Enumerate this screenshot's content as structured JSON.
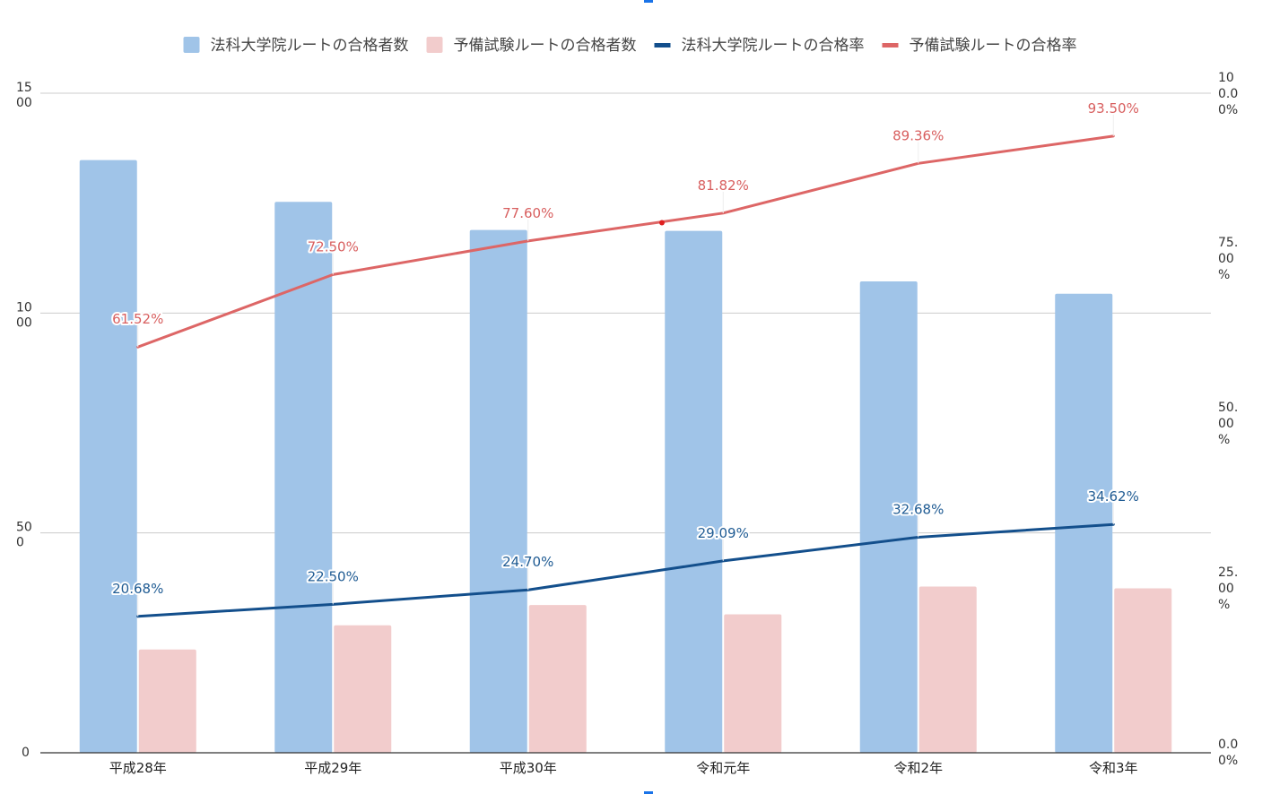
{
  "chart_data": {
    "type": "bar+line",
    "categories": [
      "平成28年",
      "平成29年",
      "平成30年",
      "令和元年",
      "令和2年",
      "令和3年"
    ],
    "series": [
      {
        "name": "法科大学院ルートの合格者数",
        "type": "bar",
        "axis": "left",
        "color": "#a0c4e8",
        "values": [
          1348,
          1253,
          1189,
          1187,
          1072,
          1044
        ]
      },
      {
        "name": "予備試験ルートの合格者数",
        "type": "bar",
        "axis": "left",
        "color": "#f2cccc",
        "values": [
          235,
          290,
          336,
          315,
          378,
          374
        ]
      },
      {
        "name": "法科大学院ルートの合格率",
        "type": "line",
        "axis": "right",
        "color": "#134f8c",
        "values": [
          20.68,
          22.5,
          24.7,
          29.09,
          32.68,
          34.62
        ],
        "labels": [
          "20.68%",
          "22.50%",
          "24.70%",
          "29.09%",
          "32.68%",
          "34.62%"
        ]
      },
      {
        "name": "予備試験ルートの合格率",
        "type": "line",
        "axis": "right",
        "color": "#dd6666",
        "values": [
          61.52,
          72.5,
          77.6,
          81.82,
          89.36,
          93.5
        ],
        "labels": [
          "61.52%",
          "72.50%",
          "77.60%",
          "81.82%",
          "89.36%",
          "93.50%"
        ]
      }
    ],
    "left_axis": {
      "min": 0,
      "max": 1500,
      "ticks": [
        0,
        500,
        1000,
        1500
      ],
      "tick_labels": [
        [
          "0"
        ],
        [
          "50",
          "0"
        ],
        [
          "10",
          "00"
        ],
        [
          "15",
          "00"
        ]
      ]
    },
    "right_axis": {
      "min": 0,
      "max": 100,
      "ticks": [
        0,
        25,
        50,
        75,
        100
      ],
      "tick_labels": [
        [
          "0.0",
          "0%"
        ],
        [
          "25.",
          "00",
          "%"
        ],
        [
          "50.",
          "00",
          "%"
        ],
        [
          "75.",
          "00",
          "%"
        ],
        [
          "10",
          "0.0",
          "0%"
        ]
      ]
    },
    "legend_position": "top",
    "gridlines": true
  }
}
